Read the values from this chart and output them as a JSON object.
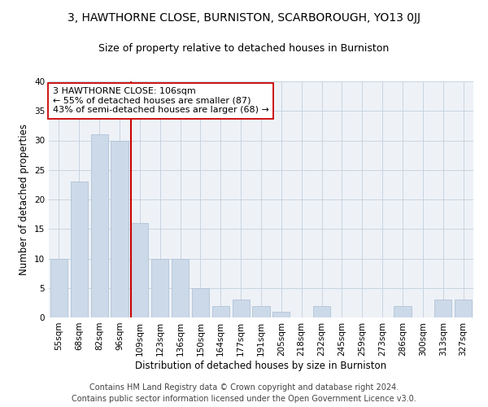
{
  "title": "3, HAWTHORNE CLOSE, BURNISTON, SCARBOROUGH, YO13 0JJ",
  "subtitle": "Size of property relative to detached houses in Burniston",
  "xlabel": "Distribution of detached houses by size in Burniston",
  "ylabel": "Number of detached properties",
  "categories": [
    "55sqm",
    "68sqm",
    "82sqm",
    "96sqm",
    "109sqm",
    "123sqm",
    "136sqm",
    "150sqm",
    "164sqm",
    "177sqm",
    "191sqm",
    "205sqm",
    "218sqm",
    "232sqm",
    "245sqm",
    "259sqm",
    "273sqm",
    "286sqm",
    "300sqm",
    "313sqm",
    "327sqm"
  ],
  "values": [
    10,
    23,
    31,
    30,
    16,
    10,
    10,
    5,
    2,
    3,
    2,
    1,
    0,
    2,
    0,
    0,
    0,
    2,
    0,
    3,
    3
  ],
  "bar_color": "#ccd9e8",
  "bar_edge_color": "#b0c4d8",
  "red_line_x": 3.58,
  "annotation_text": "3 HAWTHORNE CLOSE: 106sqm\n← 55% of detached houses are smaller (87)\n43% of semi-detached houses are larger (68) →",
  "annotation_box_color": "#ffffff",
  "annotation_box_edge_color": "#cc0000",
  "red_line_color": "#cc0000",
  "grid_color": "#c8d4e0",
  "background_color": "#eef2f7",
  "ylim": [
    0,
    40
  ],
  "yticks": [
    0,
    5,
    10,
    15,
    20,
    25,
    30,
    35,
    40
  ],
  "footer_line1": "Contains HM Land Registry data © Crown copyright and database right 2024.",
  "footer_line2": "Contains public sector information licensed under the Open Government Licence v3.0.",
  "title_fontsize": 10,
  "subtitle_fontsize": 9,
  "xlabel_fontsize": 8.5,
  "ylabel_fontsize": 8.5,
  "tick_fontsize": 7.5,
  "annotation_fontsize": 8,
  "footer_fontsize": 7
}
